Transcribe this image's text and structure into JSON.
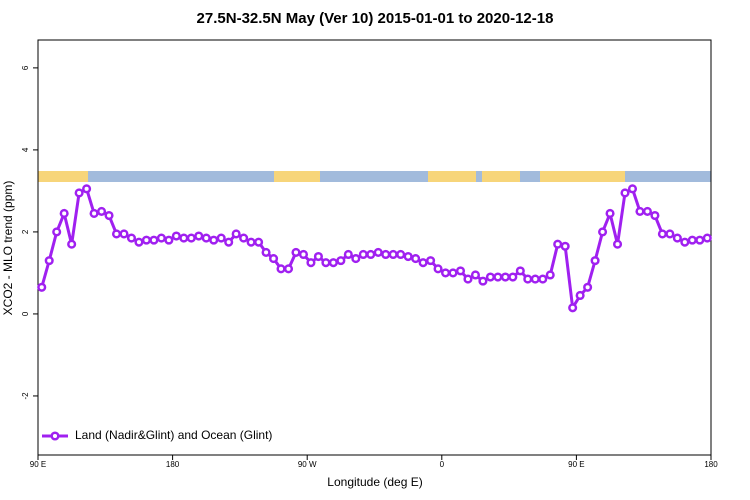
{
  "chart_data": {
    "type": "line",
    "title": "27.5N-32.5N May (Ver 10)   2015-01-01 to 2020-12-18",
    "x_label": "Longitude (deg E)",
    "y_label": "XCO2 - MLO trend (ppm)",
    "xlim": [
      90,
      540
    ],
    "ylim": [
      -3.44,
      6.68
    ],
    "xticks": [
      {
        "value": 90,
        "label": "90 E"
      },
      180,
      {
        "value": 270,
        "label": "90 W"
      },
      {
        "value": 360,
        "label": "0"
      },
      {
        "value": 450,
        "label": "90 E"
      },
      {
        "value": 540,
        "label": "180"
      }
    ],
    "yticks": [
      -2,
      0,
      2,
      4,
      6
    ],
    "legend": "bottom-left",
    "x": [
      92.5,
      97.5,
      102.5,
      107.5,
      112.5,
      117.5,
      122.5,
      127.5,
      132.5,
      137.5,
      142.5,
      147.5,
      152.5,
      157.5,
      162.5,
      167.5,
      172.5,
      177.5,
      182.5,
      187.5,
      192.5,
      197.5,
      202.5,
      207.5,
      212.5,
      217.5,
      222.5,
      227.5,
      232.5,
      237.5,
      242.5,
      247.5,
      252.5,
      257.5,
      262.5,
      267.5,
      272.5,
      277.5,
      282.5,
      287.5,
      292.5,
      297.5,
      302.5,
      307.5,
      312.5,
      317.5,
      322.5,
      327.5,
      332.5,
      337.5,
      342.5,
      347.5,
      352.5,
      357.5,
      362.5,
      367.5,
      372.5,
      377.5,
      382.5,
      387.5,
      392.5,
      397.5,
      402.5,
      407.5,
      412.5,
      417.5,
      422.5,
      427.5,
      432.5,
      437.5,
      442.5,
      447.5,
      452.5,
      457.5,
      462.5,
      467.5,
      472.5,
      477.5,
      482.5,
      487.5,
      492.5,
      497.5,
      502.5,
      507.5,
      512.5,
      517.5,
      522.5,
      527.5,
      532.5,
      537.5
    ],
    "series": [
      {
        "name": "Land (Nadir&Glint) and Ocean (Glint)",
        "color": "#a020f0",
        "values": [
          0.65,
          1.3,
          2.0,
          2.45,
          1.7,
          2.95,
          3.05,
          2.45,
          2.5,
          2.4,
          1.95,
          1.95,
          1.85,
          1.75,
          1.8,
          1.8,
          1.85,
          1.8,
          1.9,
          1.85,
          1.85,
          1.9,
          1.85,
          1.8,
          1.85,
          1.75,
          1.95,
          1.85,
          1.75,
          1.75,
          1.5,
          1.35,
          1.1,
          1.1,
          1.5,
          1.45,
          1.25,
          1.4,
          1.25,
          1.25,
          1.3,
          1.45,
          1.35,
          1.45,
          1.45,
          1.5,
          1.45,
          1.45,
          1.45,
          1.4,
          1.35,
          1.25,
          1.3,
          1.1,
          1.0,
          1.0,
          1.05,
          0.85,
          0.95,
          0.8,
          0.9,
          0.9,
          0.9,
          0.9,
          1.05,
          0.85,
          0.85,
          0.85,
          0.95,
          1.7,
          1.65,
          0.15,
          0.45,
          0.65,
          1.3,
          2.0,
          2.45,
          1.7,
          2.95,
          3.05,
          2.5,
          2.5,
          2.4,
          1.95,
          1.95,
          1.85,
          1.75,
          1.8,
          1.8,
          1.85
        ]
      }
    ]
  }
}
